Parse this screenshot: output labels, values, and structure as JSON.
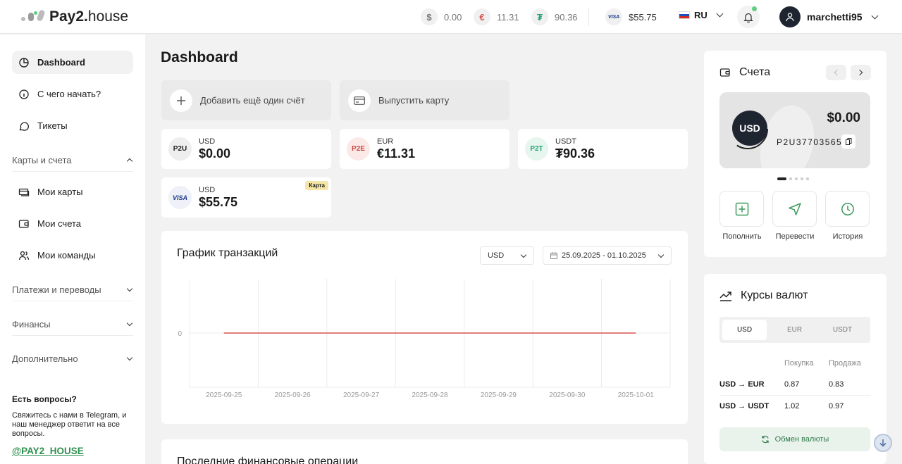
{
  "app": {
    "logo_strong": "Pay2.",
    "logo_light": "house"
  },
  "header": {
    "balances": [
      {
        "symbol": "$",
        "value": "0.00"
      },
      {
        "symbol": "€",
        "value": "11.31"
      },
      {
        "symbol": "₮",
        "value": "90.36"
      },
      {
        "symbol": "VISA",
        "value": "$55.75"
      }
    ],
    "lang": "RU",
    "username": "marchetti95"
  },
  "sidebar": {
    "items": [
      {
        "label": "Dashboard"
      },
      {
        "label": "С чего начать?"
      },
      {
        "label": "Тикеты"
      }
    ],
    "section_cards": "Карты и счета",
    "cards_items": [
      {
        "label": "Мои карты"
      },
      {
        "label": "Мои счета"
      },
      {
        "label": "Мои команды"
      }
    ],
    "section_payments": "Платежи и переводы",
    "section_finance": "Финансы",
    "section_extra": "Дополнительно",
    "help_title": "Есть вопросы?",
    "help_text": "Свяжитесь с нами в Telegram, и наш менеджер ответит на все вопросы.",
    "help_link": "@PAY2_HOUSE"
  },
  "main": {
    "title": "Dashboard",
    "add_account": "Добавить ещё один счёт",
    "issue_card": "Выпустить карту",
    "accounts": [
      {
        "badge": "P2U",
        "currency": "USD",
        "amount": "$0.00"
      },
      {
        "badge": "P2E",
        "currency": "EUR",
        "amount": "€11.31"
      },
      {
        "badge": "P2T",
        "currency": "USDT",
        "amount": "₮90.36"
      }
    ],
    "card": {
      "badge": "VISA",
      "currency": "USD",
      "amount": "$55.75",
      "tag": "Карта"
    },
    "chart_panel": {
      "title": "График транзакций",
      "currency": "USD",
      "date_range": "25.09.2025 - 01.10.2025"
    },
    "ops_title": "Последние финансовые операции"
  },
  "chart_data": {
    "type": "line",
    "title": "График транзакций",
    "x": [
      "2025-09-25",
      "2025-09-26",
      "2025-09-27",
      "2025-09-28",
      "2025-09-29",
      "2025-09-30",
      "2025-10-01"
    ],
    "series": [
      {
        "values": [
          0,
          0,
          0,
          0,
          0,
          0,
          0
        ],
        "color": "#d9534f"
      }
    ],
    "y_ticks": [
      "0"
    ],
    "grid": true
  },
  "accounts_panel": {
    "title": "Счета",
    "card_currency": "USD",
    "card_amount": "$0.00",
    "card_number": "P2U37703565",
    "actions": [
      {
        "label": "Пополнить"
      },
      {
        "label": "Перевести"
      },
      {
        "label": "История"
      }
    ]
  },
  "rates_panel": {
    "title": "Курсы валют",
    "tabs": [
      "USD",
      "EUR",
      "USDT"
    ],
    "col_buy": "Покупка",
    "col_sell": "Продажа",
    "rows": [
      {
        "pair": "USD → EUR",
        "buy": "0.87",
        "sell": "0.83"
      },
      {
        "pair": "USD → USDT",
        "buy": "1.02",
        "sell": "0.97"
      }
    ],
    "exchange_button": "Обмен валюты"
  },
  "colors": {
    "accent_green": "#2f8f4e",
    "chart_line": "#d9534f"
  }
}
